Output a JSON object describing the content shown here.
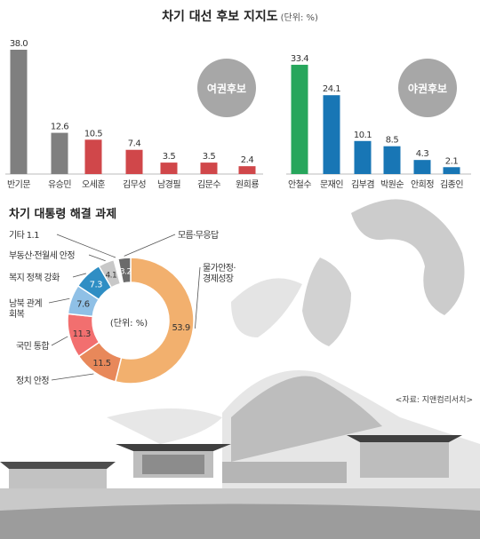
{
  "title": "차기 대선 후보 지지도",
  "title_unit": "(단위: %)",
  "group_left_label": "여권후보",
  "group_right_label": "야권후보",
  "donut_title": "차기 대통령 해결 과제",
  "donut_center_label": "(단위: %)",
  "source": "<자료: 지앤컴리서치>",
  "colors": {
    "gray": "#7f7f7f",
    "red": "#d0474a",
    "green": "#27a65c",
    "blue": "#1876b5",
    "bubble": "#a7a7a7"
  },
  "chart_data": [
    {
      "type": "bar",
      "title": "차기 대선 후보 지지도",
      "unit": "%",
      "categories": [
        "반기문",
        "유승민",
        "오세훈",
        "김무성",
        "남경필",
        "김문수",
        "원희룡",
        "안철수",
        "문재인",
        "김부겸",
        "박원순",
        "안희정",
        "김종인"
      ],
      "values": [
        38.0,
        12.6,
        10.5,
        7.4,
        3.5,
        3.5,
        2.4,
        33.4,
        24.1,
        10.1,
        8.5,
        4.3,
        2.1
      ],
      "value_labels": [
        "38.0",
        "12.6",
        "10.5",
        "7.4",
        "3.5",
        "3.5",
        "2.4",
        "33.4",
        "24.1",
        "10.1",
        "8.5",
        "4.3",
        "2.1"
      ],
      "bar_colors": [
        "#7f7f7f",
        "#7f7f7f",
        "#d0474a",
        "#d0474a",
        "#d0474a",
        "#d0474a",
        "#d0474a",
        "#27a65c",
        "#1876b5",
        "#1876b5",
        "#1876b5",
        "#1876b5",
        "#1876b5"
      ],
      "ylim": [
        0,
        40
      ]
    },
    {
      "type": "pie",
      "title": "차기 대통령 해결 과제",
      "unit": "%",
      "categories": [
        "물가안정·경제성장",
        "정치 안정",
        "국민 통합",
        "남북 관계 회복",
        "복지 정책 강화",
        "부동산·전월세 안정",
        "기타",
        "모름·무응답"
      ],
      "values": [
        53.9,
        11.5,
        11.3,
        7.6,
        7.3,
        4.1,
        1.1,
        3.2
      ],
      "value_labels": [
        "53.9",
        "11.5",
        "11.3",
        "7.6",
        "7.3",
        "4.1",
        "",
        "3.2"
      ],
      "category_lines": [
        [
          "물가안정·",
          "경제성장"
        ],
        [
          "정치 안정"
        ],
        [
          "국민 통합"
        ],
        [
          "남북 관계",
          "회복"
        ],
        [
          "복지 정책 강화"
        ],
        [
          "부동산·전월세 안정"
        ],
        [
          "기타 1.1"
        ],
        [
          "모름·무응답"
        ]
      ],
      "colors": [
        "#f2b06e",
        "#e8885a",
        "#f26f6f",
        "#8fc0e6",
        "#2f8ec4",
        "#c8c8c8",
        "#ffffff",
        "#6b6b6b"
      ]
    }
  ]
}
